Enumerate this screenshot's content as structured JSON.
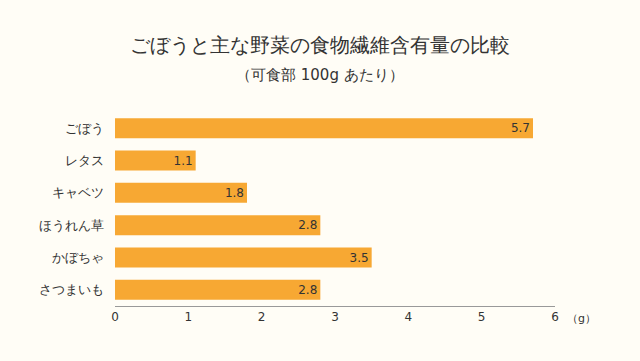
{
  "chart_data": {
    "type": "bar",
    "title": "ごぼうと主な野菜の食物繊維含有量の比較",
    "subtitle": "（可食部 100g あたり）",
    "x_label": "（g）",
    "categories": [
      "ごぼう",
      "レタス",
      "キャベツ",
      "ほうれん草",
      "かぼちゃ",
      "さつまいも"
    ],
    "values": [
      5.7,
      1.1,
      1.8,
      2.8,
      3.5,
      2.8
    ],
    "color": "#f7a833",
    "orientation": "horizontal",
    "data_labels": true,
    "xlim": [
      0,
      6
    ],
    "xticks": [
      0,
      1,
      2,
      3,
      4,
      5,
      6
    ],
    "grid": false
  }
}
